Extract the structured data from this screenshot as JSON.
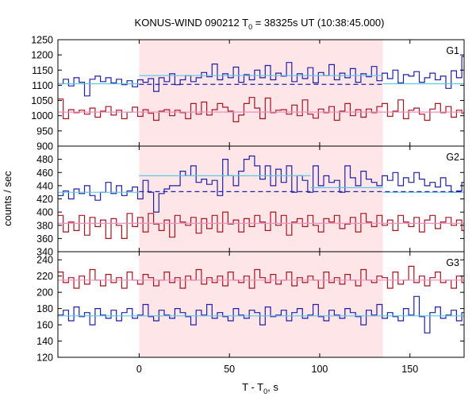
{
  "title": "KONUS-WIND 090212 T",
  "title_sub": "0",
  "title_rest": " = 38325s UT (10:38:45.000)",
  "xlabel": "T - T",
  "xlabel_sub": "0",
  "xlabel_rest": ", s",
  "ylabel": "counts / sec",
  "colors": {
    "blue": "#1f1fa8",
    "red": "#a8141e",
    "cyan": "#56c8e8",
    "pink": "#f08cc0",
    "shade": "#fde5e8"
  },
  "chart_data": {
    "type": "line",
    "x_axis": {
      "range": [
        -45,
        180
      ],
      "ticks": [
        0,
        50,
        100,
        150
      ],
      "tick_labels": [
        "0",
        "50",
        "100",
        "150"
      ]
    },
    "shaded_interval": [
      0,
      135
    ],
    "panels": [
      {
        "id": "G1",
        "label": "G1",
        "ylim": [
          900,
          1250
        ],
        "yticks": [
          900,
          950,
          1000,
          1050,
          1100,
          1150,
          1200,
          1250
        ],
        "ytick_labels": [
          "900",
          "950",
          "1000",
          "1050",
          "1100",
          "1150",
          "1200",
          "1250"
        ],
        "series": [
          {
            "name": "G1 upper (blue)",
            "color": "blue",
            "x_start": -45,
            "bin": 2.944,
            "values": [
              1105,
              1120,
              1098,
              1125,
              1110,
              1065,
              1120,
              1130,
              1112,
              1125,
              1108,
              1120,
              1102,
              1115,
              1095,
              1118,
              1110,
              1122,
              1080,
              1125,
              1112,
              1138,
              1102,
              1118,
              1132,
              1112,
              1125,
              1142,
              1128,
              1170,
              1118,
              1138,
              1125,
              1160,
              1110,
              1135,
              1118,
              1150,
              1125,
              1165,
              1118,
              1140,
              1130,
              1175,
              1112,
              1138,
              1122,
              1158,
              1108,
              1142,
              1132,
              1168,
              1118,
              1140,
              1125,
              1155,
              1110,
              1138,
              1128,
              1162,
              1115,
              1140,
              1122,
              1150,
              1108,
              1135,
              1130,
              1145,
              1110,
              1125,
              1140,
              1118,
              1130,
              1090,
              1148,
              1125,
              1195,
              1118,
              1132,
              1108,
              1085,
              1110,
              1120,
              1092,
              1115,
              1085,
              1098,
              1108,
              1080,
              1118,
              1130,
              1100,
              1115,
              1095,
              1120,
              1108,
              1138,
              1118,
              1092,
              1120,
              1110,
              1135,
              1102,
              1118,
              1125,
              1100,
              1112,
              1120,
              1095,
              1102,
              1100,
              1095,
              1092,
              1120,
              1102,
              1095,
              1110,
              1090,
              1085,
              1102,
              1110
            ]
          },
          {
            "name": "G1 lower (red)",
            "color": "red",
            "x_start": -45,
            "bin": 2.944,
            "values": [
              1055,
              990,
              1020,
              1010,
              1018,
              1005,
              1025,
              995,
              1015,
              1030,
              1002,
              1018,
              990,
              1012,
              1028,
              998,
              1020,
              1008,
              985,
              1015,
              1020,
              1000,
              1018,
              1010,
              990,
              1040,
              1005,
              1045,
              1002,
              1020,
              1040,
              1028,
              1015,
              980,
              1002,
              1040,
              1060,
              1025,
              990,
              1058,
              1010,
              1018,
              1020,
              1005,
              1035,
              1000,
              1052,
              1005,
              992,
              1022,
              1010,
              1030,
              985,
              1015,
              1040,
              1000,
              1020,
              995,
              1022,
              1010,
              1030,
              1040,
              998,
              1015,
              1052,
              990,
              1018,
              1025,
              1005,
              985,
              1022,
              1040,
              1010,
              1030,
              995,
              1018,
              1008,
              1045,
              1002,
              1020,
              1015,
              985,
              1050,
              1005,
              1030,
              1015,
              1000,
              1020,
              1010,
              995,
              1018,
              1005,
              1025,
              1010,
              1000,
              1015,
              1030,
              1010,
              1005,
              1028,
              1040,
              1018,
              1010,
              1022,
              1030,
              1005,
              1018,
              1012,
              1008,
              1020,
              1010,
              1025,
              1030,
              1040,
              1015,
              1005,
              1025,
              1035,
              1010,
              1020
            ]
          },
          {
            "name": "G1 background fit (cyan)",
            "color": "cyan",
            "segments": [
              [
                -45,
                1105,
                0,
                1105
              ],
              [
                0,
                1132,
                135,
                1132
              ],
              [
                135,
                1105,
                180,
                1105
              ]
            ]
          },
          {
            "name": "G1 background level (dashed)",
            "color": "blue",
            "dashed": true,
            "segments": [
              [
                0,
                1103,
                135,
                1103
              ]
            ]
          },
          {
            "name": "G1 red fit (pink)",
            "color": "pink",
            "segments": [
              [
                -45,
                1012,
                180,
                1012
              ]
            ]
          }
        ]
      },
      {
        "id": "G2",
        "label": "G2",
        "ylim": [
          340,
          500
        ],
        "yticks": [
          340,
          360,
          380,
          400,
          420,
          440,
          460,
          480
        ],
        "ytick_labels": [
          "340",
          "360",
          "380",
          "400",
          "420",
          "440",
          "460",
          "480"
        ],
        "series": [
          {
            "name": "G2 upper (blue)",
            "color": "blue",
            "x_start": -45,
            "bin": 2.944,
            "values": [
              425,
              432,
              420,
              435,
              428,
              440,
              425,
              418,
              430,
              445,
              428,
              440,
              425,
              432,
              438,
              420,
              448,
              430,
              400,
              428,
              435,
              440,
              440,
              462,
              455,
              470,
              445,
              450,
              442,
              448,
              425,
              480,
              455,
              440,
              462,
              480,
              485,
              470,
              450,
              470,
              440,
              465,
              445,
              470,
              430,
              455,
              448,
              430,
              470,
              440,
              455,
              445,
              448,
              430,
              470,
              452,
              440,
              462,
              450,
              445,
              440,
              455,
              448,
              460,
              440,
              452,
              445,
              460,
              450,
              440,
              445,
              438,
              452,
              440,
              430,
              432,
              445,
              436,
              430,
              440,
              428,
              448,
              432,
              440,
              430,
              435,
              445,
              430,
              440,
              418,
              440,
              432,
              425,
              445,
              430,
              438,
              420,
              432,
              440,
              428,
              450,
              425,
              440,
              432,
              445,
              428,
              448,
              436,
              440,
              430,
              445,
              438,
              425,
              440,
              430,
              445,
              430,
              440,
              432,
              438,
              428
            ]
          },
          {
            "name": "G2 lower (red)",
            "color": "red",
            "x_start": -45,
            "bin": 2.944,
            "values": [
              395,
              370,
              385,
              372,
              395,
              365,
              392,
              378,
              388,
              360,
              390,
              380,
              360,
              398,
              378,
              392,
              370,
              398,
              382,
              372,
              388,
              362,
              395,
              385,
              380,
              392,
              368,
              390,
              375,
              395,
              370,
              400,
              382,
              388,
              370,
              390,
              378,
              395,
              385,
              372,
              400,
              380,
              395,
              365,
              385,
              390,
              378,
              395,
              380,
              370,
              390,
              385,
              395,
              375,
              382,
              392,
              370,
              398,
              385,
              378,
              395,
              380,
              388,
              372,
              395,
              385,
              378,
              392,
              370,
              388,
              395,
              375,
              385,
              392,
              380,
              388,
              372,
              398,
              382,
              385,
              370,
              395,
              380,
              375,
              388,
              390,
              378,
              395,
              380,
              370,
              392,
              385,
              375,
              388,
              395,
              372,
              385,
              380,
              392,
              375,
              388,
              382,
              370,
              395,
              385,
              378,
              392,
              380,
              370,
              388,
              395,
              378,
              385,
              372,
              390,
              382,
              375,
              392,
              385,
              378,
              388
            ]
          },
          {
            "name": "G2 background fit (cyan)",
            "color": "cyan",
            "segments": [
              [
                -45,
                430,
                0,
                430
              ],
              [
                0,
                455,
                95,
                455
              ],
              [
                95,
                437,
                135,
                437
              ],
              [
                135,
                430,
                180,
                430
              ]
            ]
          },
          {
            "name": "G2 background level (dashed)",
            "color": "blue",
            "dashed": true,
            "segments": [
              [
                0,
                431,
                180,
                431
              ]
            ]
          },
          {
            "name": "G2 red fit (pink)",
            "color": "pink",
            "segments": [
              [
                -45,
                383,
                180,
                383
              ]
            ]
          }
        ]
      },
      {
        "id": "G3",
        "label": "G3",
        "ylim": [
          120,
          250
        ],
        "yticks": [
          120,
          140,
          160,
          180,
          200,
          220,
          240
        ],
        "ytick_labels": [
          "120",
          "140",
          "160",
          "180",
          "200",
          "220",
          "240"
        ],
        "series": [
          {
            "name": "G3 upper (red)",
            "color": "red",
            "x_start": -45,
            "bin": 2.944,
            "values": [
              225,
              212,
              218,
              205,
              220,
              210,
              228,
              215,
              208,
              222,
              212,
              218,
              205,
              225,
              215,
              210,
              222,
              218,
              208,
              215,
              225,
              212,
              218,
              205,
              220,
              215,
              228,
              210,
              218,
              212,
              220,
              208,
              225,
              215,
              212,
              220,
              205,
              228,
              218,
              212,
              222,
              210,
              215,
              225,
              208,
              218,
              212,
              220,
              215,
              205,
              225,
              212,
              218,
              210,
              222,
              215,
              208,
              228,
              215,
              212,
              220,
              218,
              205,
              225,
              210,
              215,
              232,
              212,
              220,
              208,
              218,
              225,
              212,
              215,
              205,
              220,
              212,
              240,
              218,
              210,
              222,
              215,
              208,
              225,
              212,
              218,
              205,
              220,
              215,
              228,
              210,
              218,
              212,
              220,
              215,
              205,
              225,
              212,
              218,
              210,
              222,
              215,
              208,
              225,
              212,
              218,
              205,
              220,
              215,
              228,
              210,
              218,
              212,
              220,
              215,
              205,
              225,
              212,
              218,
              210,
              222
            ]
          },
          {
            "name": "G3 lower (blue)",
            "color": "blue",
            "x_start": -45,
            "bin": 2.944,
            "values": [
              172,
              178,
              165,
              182,
              170,
              175,
              160,
              180,
              172,
              168,
              178,
              165,
              175,
              180,
              168,
              172,
              185,
              170,
              165,
              178,
              172,
              168,
              180,
              175,
              170,
              160,
              178,
              172,
              185,
              168,
              175,
              170,
              165,
              180,
              172,
              168,
              178,
              175,
              160,
              182,
              170,
              172,
              178,
              165,
              175,
              180,
              168,
              172,
              185,
              170,
              165,
              178,
              172,
              168,
              180,
              175,
              170,
              160,
              178,
              172,
              185,
              168,
              175,
              170,
              165,
              180,
              172,
              195,
              170,
              150,
              175,
              182,
              168,
              172,
              178,
              165,
              175,
              180,
              168,
              172,
              185,
              170,
              165,
              178,
              172,
              168,
              180,
              175,
              170,
              160,
              178,
              172,
              185,
              168,
              175,
              170,
              165,
              180,
              172,
              168,
              178,
              175,
              160,
              182,
              170,
              172,
              178,
              165,
              175,
              180,
              168,
              172,
              185,
              170,
              165,
              178,
              172,
              168,
              180,
              175,
              170
            ]
          },
          {
            "name": "G3 upper fit (pink)",
            "color": "pink",
            "segments": [
              [
                -45,
                215,
                180,
                215
              ]
            ]
          },
          {
            "name": "G3 lower fit (cyan)",
            "color": "cyan",
            "segments": [
              [
                -45,
                171,
                180,
                171
              ]
            ]
          }
        ]
      }
    ]
  }
}
